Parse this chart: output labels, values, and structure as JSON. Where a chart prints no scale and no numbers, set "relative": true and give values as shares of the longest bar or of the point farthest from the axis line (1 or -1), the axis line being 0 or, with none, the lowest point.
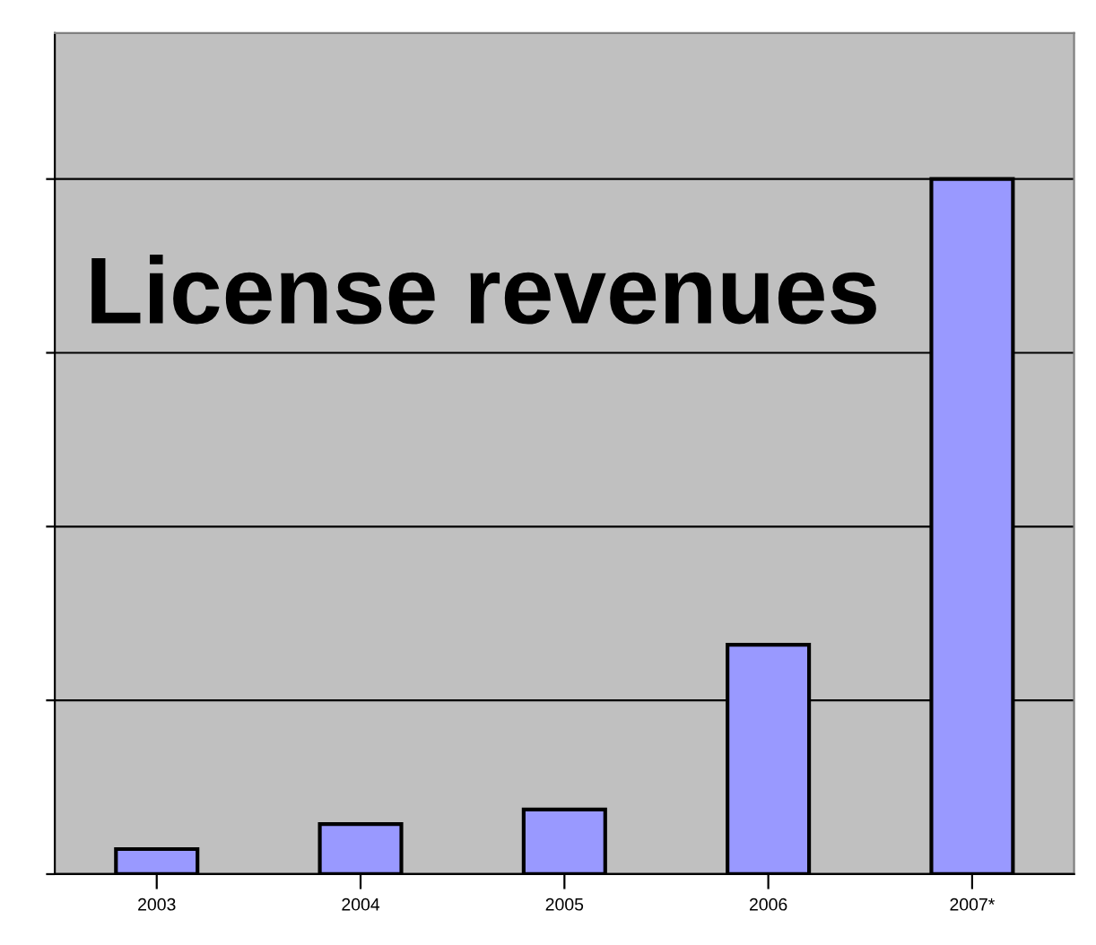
{
  "chart_data": {
    "type": "bar",
    "title": "License revenues",
    "relative": true,
    "categories": [
      "2003",
      "2004",
      "2005",
      "2006",
      "2007*"
    ],
    "values": [
      0.036,
      0.072,
      0.093,
      0.33,
      1.0
    ],
    "color": "#9999ff",
    "grid": "y",
    "tick_labels": "x"
  }
}
